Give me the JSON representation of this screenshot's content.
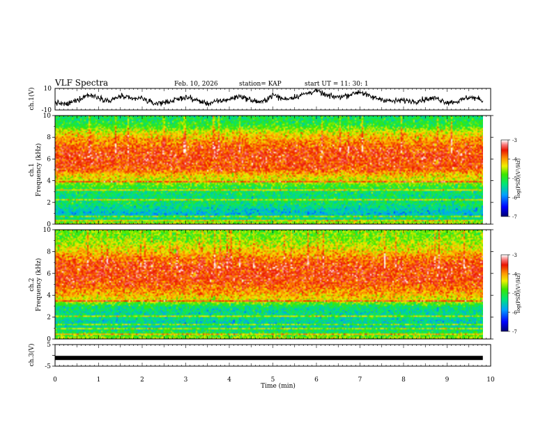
{
  "header": {
    "title": "VLF Spectra",
    "date": "Feb. 10, 2026",
    "station": "station= KAP",
    "start": "start UT =  11: 30: 1"
  },
  "chart_data": [
    {
      "type": "line",
      "name": "ch1-voltage",
      "ylabel": "ch.1(V)",
      "ylim": [
        -10,
        10
      ],
      "yticks": [
        -10,
        10
      ],
      "xlim": [
        0,
        10
      ],
      "trace_keypoints": {
        "t": [
          0,
          0.25,
          0.5,
          0.75,
          1.0,
          1.25,
          1.5,
          1.75,
          2.0,
          2.25,
          2.5,
          2.75,
          3.0,
          3.25,
          3.5,
          3.75,
          4.0,
          4.25,
          4.5,
          4.75,
          5.0,
          5.25,
          5.5,
          5.75,
          6.0,
          6.25,
          6.5,
          6.75,
          7.0,
          7.25,
          7.5,
          7.75,
          8.0,
          8.25,
          8.5,
          8.75,
          9.0,
          9.25,
          9.5,
          9.75,
          9.82
        ],
        "v": [
          -3,
          -5,
          -1,
          4,
          2,
          -2,
          3,
          0,
          1,
          -4,
          -3,
          -1,
          2,
          -1,
          -4,
          -2,
          0,
          3,
          -1,
          -3,
          4,
          0,
          2,
          5,
          8,
          3,
          2,
          4,
          7,
          2,
          0,
          -2,
          -1,
          -2,
          0,
          1,
          -3,
          -2,
          2,
          0,
          -2
        ]
      }
    },
    {
      "type": "heatmap",
      "name": "ch1-spectrogram",
      "ylabel": "ch.1",
      "ylabel2": "Frequency  (kHz)",
      "ylim": [
        0,
        10
      ],
      "yticks": [
        0,
        2,
        4,
        6,
        8,
        10
      ],
      "xlim": [
        0,
        10
      ],
      "colorbar": {
        "label": "log(PSD)(V²/Hz)",
        "range": [
          -7,
          -3
        ],
        "ticks": [
          -3,
          -4,
          -5,
          -6,
          -7
        ]
      },
      "level_profile": {
        "freq_khz": [
          0,
          0.5,
          1.0,
          1.5,
          2.0,
          2.5,
          3.0,
          3.5,
          4.0,
          4.5,
          5.0,
          5.5,
          6.0,
          6.5,
          7.0,
          7.5,
          8.0,
          8.5,
          9.0,
          9.5,
          10.0
        ],
        "log_psd": [
          -4.4,
          -5.3,
          -5.7,
          -5.4,
          -5.2,
          -5.3,
          -5.2,
          -4.9,
          -4.4,
          -4.2,
          -3.7,
          -3.65,
          -3.6,
          -3.6,
          -3.7,
          -3.9,
          -4.1,
          -4.4,
          -4.9,
          -5.1,
          -5.2
        ]
      },
      "lines_khz": [
        0.3,
        0.7,
        1.4,
        2.2,
        2.7,
        3.1,
        3.9
      ]
    },
    {
      "type": "heatmap",
      "name": "ch2-spectrogram",
      "ylabel": "ch.2",
      "ylabel2": "Frequency  (kHz)",
      "ylim": [
        0,
        10
      ],
      "yticks": [
        0,
        2,
        4,
        6,
        8,
        10
      ],
      "xlim": [
        0,
        10
      ],
      "colorbar": {
        "label": "log(PSD)(V²/Hz)",
        "range": [
          -7,
          -3
        ],
        "ticks": [
          -3,
          -4,
          -5,
          -6,
          -7
        ]
      },
      "level_profile": {
        "freq_khz": [
          0,
          0.5,
          1.0,
          1.5,
          2.0,
          2.5,
          3.0,
          3.5,
          4.0,
          4.5,
          5.0,
          5.5,
          6.0,
          6.5,
          7.0,
          7.5,
          8.0,
          8.5,
          9.0,
          9.5,
          10.0
        ],
        "log_psd": [
          -4.5,
          -5.0,
          -5.4,
          -5.5,
          -5.3,
          -5.4,
          -5.2,
          -4.4,
          -4.1,
          -3.9,
          -3.7,
          -3.6,
          -3.6,
          -3.6,
          -3.7,
          -3.9,
          -4.2,
          -4.4,
          -4.6,
          -4.7,
          -4.7
        ]
      },
      "lines_khz": [
        0.4,
        0.9,
        1.3,
        1.9,
        2.1,
        3.5
      ]
    },
    {
      "type": "line",
      "name": "ch3-voltage",
      "ylabel": "ch.3(V)",
      "ylim": [
        -5,
        5
      ],
      "yticks": [
        -5,
        0,
        5
      ],
      "xlim": [
        0,
        10
      ],
      "xticks": [
        0,
        1,
        2,
        3,
        4,
        5,
        6,
        7,
        8,
        9,
        10
      ],
      "xlabel": "Time  (min)",
      "level": -1.2,
      "t_end": 9.82
    }
  ]
}
